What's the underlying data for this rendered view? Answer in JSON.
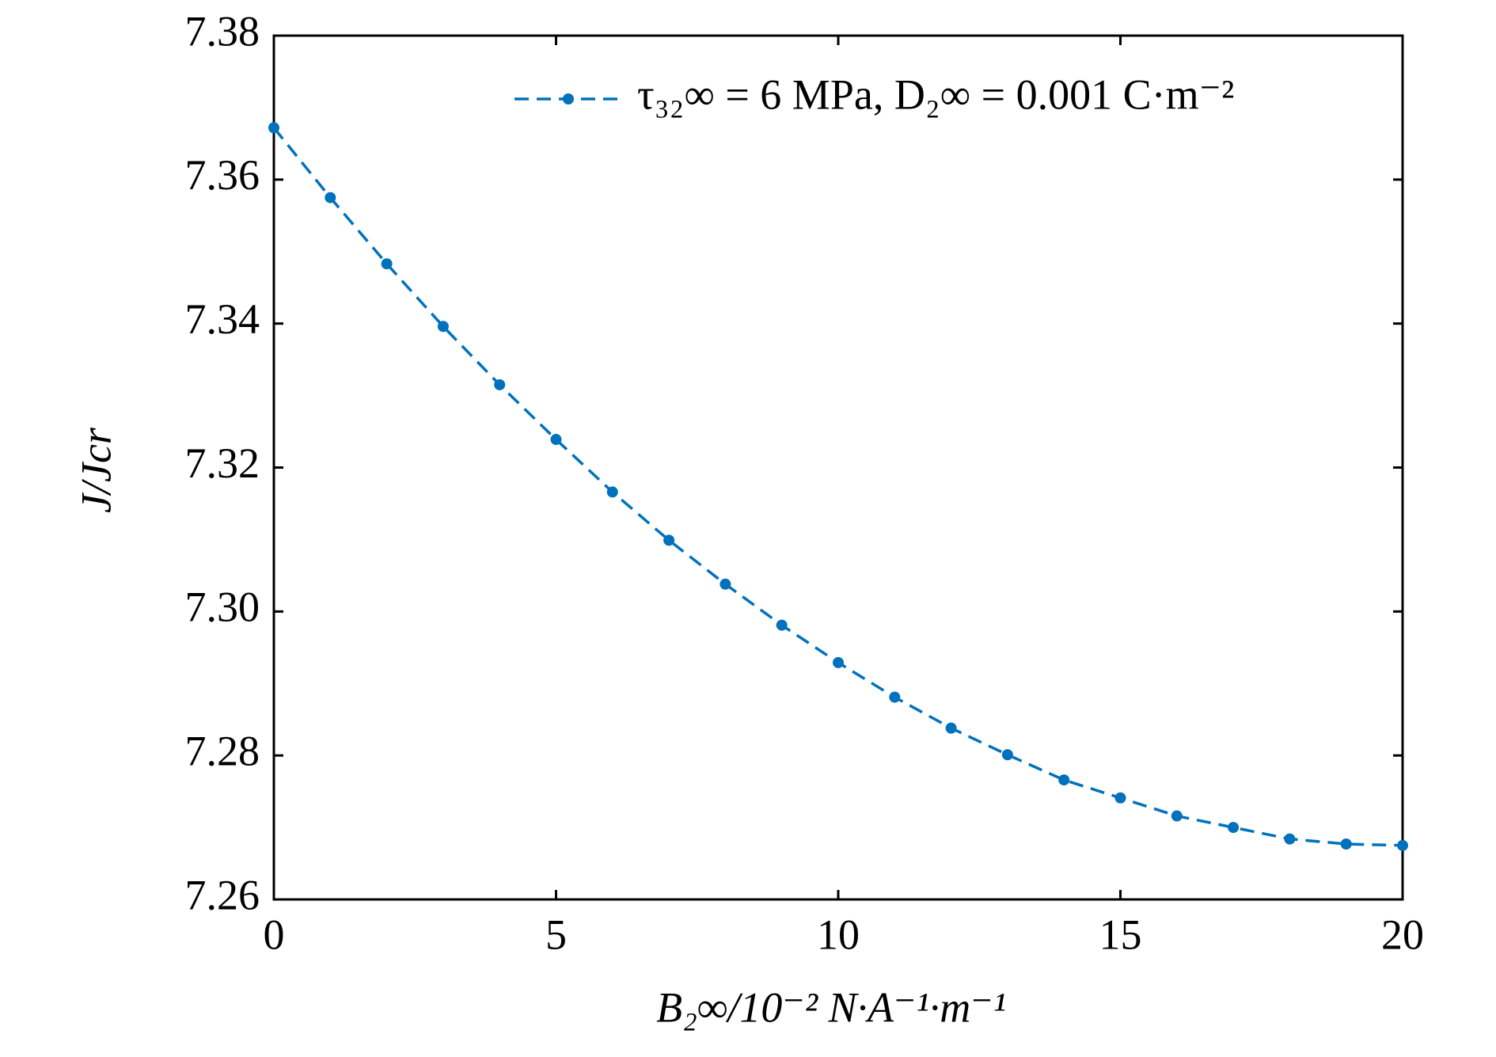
{
  "chart_data": {
    "type": "line",
    "x_label": "B₂∞/10⁻² N·A⁻¹·m⁻¹",
    "y_label": "J/Jcr",
    "x": [
      0,
      1,
      2,
      3,
      4,
      5,
      6,
      7,
      8,
      9,
      10,
      11,
      12,
      13,
      14,
      15,
      16,
      17,
      18,
      19,
      20
    ],
    "series": [
      {
        "name": "τ₃₂∞ = 6 MPa, D₂∞ = 0.001 C·m⁻²",
        "color": "#0072bd",
        "values": [
          7.3672,
          7.3575,
          7.3483,
          7.3396,
          7.3315,
          7.3239,
          7.3166,
          7.3099,
          7.3038,
          7.2981,
          7.2929,
          7.2881,
          7.2838,
          7.2801,
          7.2766,
          7.2741,
          7.2716,
          7.27,
          7.2684,
          7.2677,
          7.2675
        ]
      }
    ],
    "xlim": [
      0,
      20
    ],
    "xticks": [
      0,
      5,
      10,
      15,
      20
    ],
    "ylim": [
      7.26,
      7.38
    ],
    "yticks": [
      7.26,
      7.28,
      {
        "value": 7.3,
        "label": "7.30"
      },
      7.32,
      7.34,
      7.36,
      7.38
    ],
    "legend": "upper right",
    "grid": false
  }
}
